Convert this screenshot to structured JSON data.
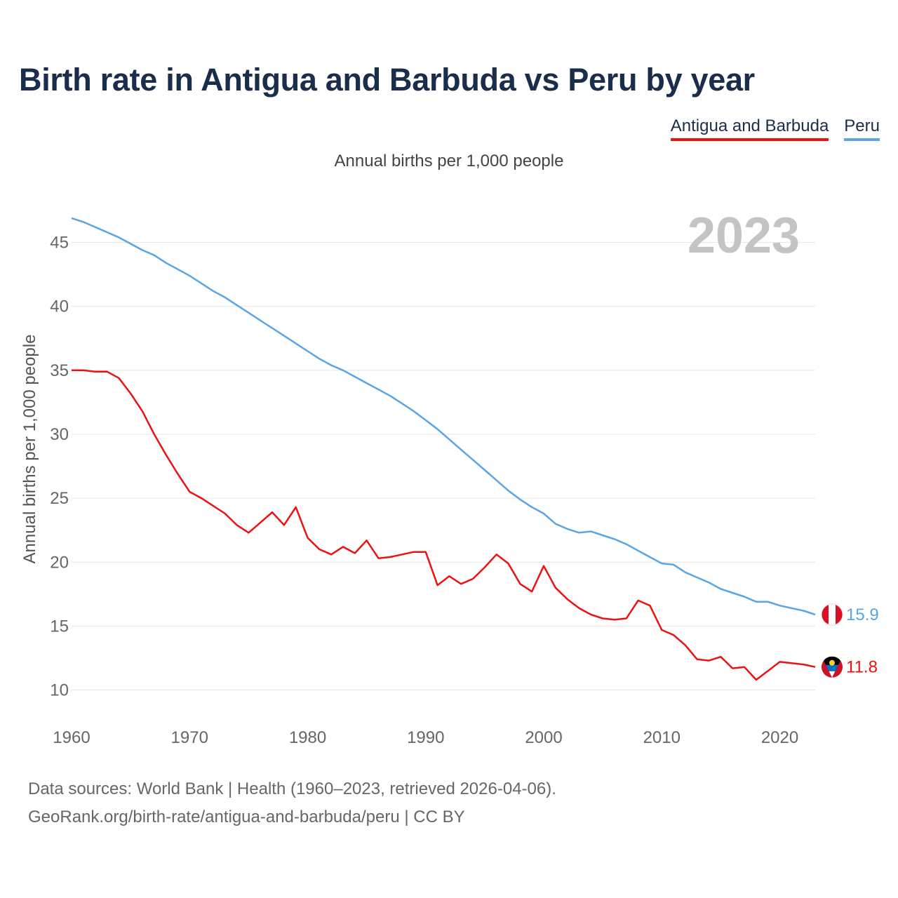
{
  "title": "Birth rate in Antigua and Barbuda vs Peru by year",
  "subtitle": "Annual births per 1,000 people",
  "legend": [
    {
      "name": "Antigua and Barbuda",
      "color": "#ee1111"
    },
    {
      "name": "Peru",
      "color": "#5aa5e6"
    }
  ],
  "year_label": "2023",
  "footer": {
    "line1": "Data sources: World Bank | Health (1960–2023, retrieved 2026-04-06).",
    "line2": "GeoRank.org/birth-rate/antigua-and-barbuda/peru | CC BY"
  },
  "chart_data": {
    "type": "line",
    "title": "Birth rate in Antigua and Barbuda vs Peru by year",
    "ylabel": "Annual births per 1,000 people",
    "xlabel": "",
    "xlim": [
      1960,
      2023
    ],
    "ylim": [
      8,
      47.5
    ],
    "x_ticks": [
      1960,
      1970,
      1980,
      1990,
      2000,
      2010,
      2020
    ],
    "y_ticks": [
      10,
      15,
      20,
      25,
      30,
      35,
      40,
      45
    ],
    "x": [
      1960,
      1961,
      1962,
      1963,
      1964,
      1965,
      1966,
      1967,
      1968,
      1969,
      1970,
      1971,
      1972,
      1973,
      1974,
      1975,
      1976,
      1977,
      1978,
      1979,
      1980,
      1981,
      1982,
      1983,
      1984,
      1985,
      1986,
      1987,
      1988,
      1989,
      1990,
      1991,
      1992,
      1993,
      1994,
      1995,
      1996,
      1997,
      1998,
      1999,
      2000,
      2001,
      2002,
      2003,
      2004,
      2005,
      2006,
      2007,
      2008,
      2009,
      2010,
      2011,
      2012,
      2013,
      2014,
      2015,
      2016,
      2017,
      2018,
      2019,
      2020,
      2021,
      2022,
      2023
    ],
    "series": [
      {
        "name": "Antigua and Barbuda",
        "color": "#ee1111",
        "end_label": "11.8",
        "values": [
          35.0,
          35.0,
          34.9,
          34.9,
          34.4,
          33.2,
          31.8,
          30.0,
          28.4,
          26.9,
          25.5,
          25.0,
          24.4,
          23.8,
          22.9,
          22.3,
          23.1,
          23.9,
          22.9,
          24.3,
          21.9,
          21.0,
          20.6,
          21.2,
          20.7,
          21.7,
          20.3,
          20.4,
          20.6,
          20.8,
          20.8,
          18.2,
          18.9,
          18.3,
          18.7,
          19.6,
          20.6,
          19.9,
          18.3,
          17.7,
          19.7,
          18.0,
          17.1,
          16.4,
          15.9,
          15.6,
          15.5,
          15.6,
          17.0,
          16.6,
          14.7,
          14.3,
          13.5,
          12.4,
          12.3,
          12.6,
          11.7,
          11.8,
          10.8,
          11.5,
          12.2,
          12.1,
          12.0,
          11.8
        ]
      },
      {
        "name": "Peru",
        "color": "#5aa5e6",
        "end_label": "15.9",
        "values": [
          46.9,
          46.6,
          46.2,
          45.8,
          45.4,
          44.9,
          44.4,
          44.0,
          43.4,
          42.9,
          42.4,
          41.8,
          41.2,
          40.7,
          40.1,
          39.5,
          38.9,
          38.3,
          37.7,
          37.1,
          36.5,
          35.9,
          35.4,
          35.0,
          34.5,
          34.0,
          33.5,
          33.0,
          32.4,
          31.8,
          31.1,
          30.4,
          29.6,
          28.8,
          28.0,
          27.2,
          26.4,
          25.6,
          24.9,
          24.3,
          23.8,
          23.0,
          22.6,
          22.3,
          22.4,
          22.1,
          21.8,
          21.4,
          20.9,
          20.4,
          19.9,
          19.8,
          19.2,
          18.8,
          18.4,
          17.9,
          17.6,
          17.3,
          16.9,
          16.9,
          16.6,
          16.4,
          16.2,
          15.9
        ]
      }
    ]
  }
}
